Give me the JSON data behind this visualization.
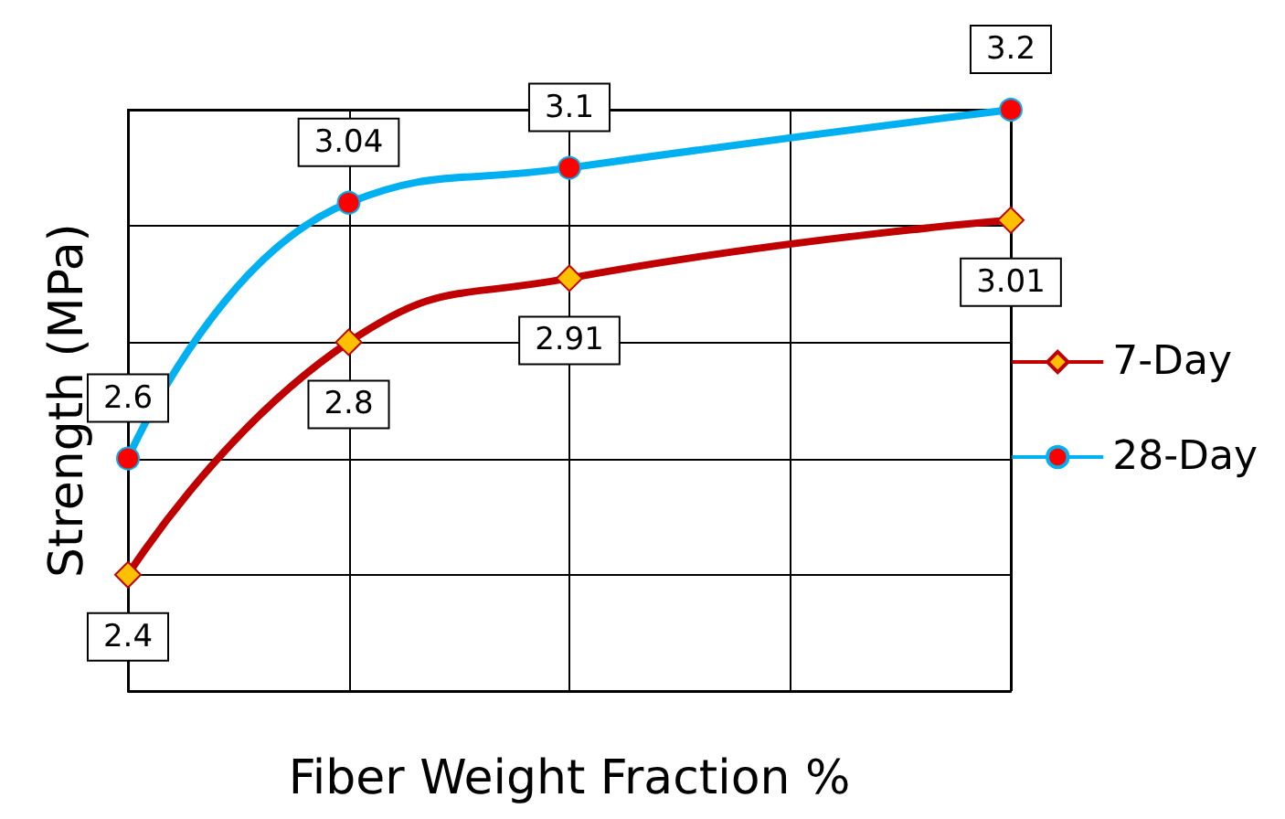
{
  "chart_data": {
    "type": "line",
    "xlabel": "Fiber Weight Fraction %",
    "ylabel": "Strength (MPa)",
    "categories": [
      null,
      null,
      null,
      null,
      null
    ],
    "series": [
      {
        "name": "7-Day",
        "color": "#c00000",
        "marker": "diamond",
        "values": [
          2.4,
          2.8,
          2.91,
          null,
          3.01
        ]
      },
      {
        "name": "28-Day",
        "color": "#00b0f0",
        "marker": "circle",
        "values": [
          2.6,
          3.04,
          3.1,
          null,
          3.2
        ]
      }
    ],
    "data_labels": true,
    "grid": true,
    "legend": "right"
  }
}
